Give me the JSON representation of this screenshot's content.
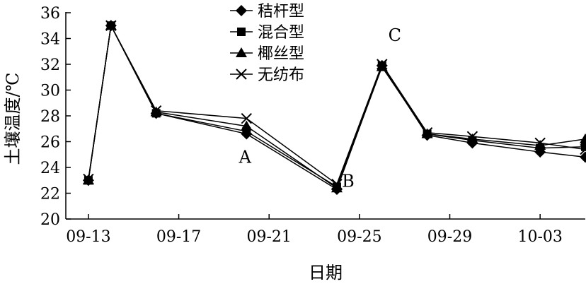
{
  "chart_data": {
    "type": "line",
    "xlabel": "日期",
    "ylabel": "土壤温度/℃",
    "ylim": [
      20,
      36
    ],
    "y_ticks": [
      20,
      22,
      24,
      26,
      28,
      30,
      32,
      34,
      36
    ],
    "x_range": [
      "2023-09-12",
      "2023-10-05"
    ],
    "x_ticks": [
      {
        "date": "2023-09-13",
        "label": "09-13"
      },
      {
        "date": "2023-09-17",
        "label": "09-17"
      },
      {
        "date": "2023-09-21",
        "label": "09-21"
      },
      {
        "date": "2023-09-25",
        "label": "09-25"
      },
      {
        "date": "2023-09-29",
        "label": "09-29"
      },
      {
        "date": "2023-10-03",
        "label": "10-03"
      }
    ],
    "x": [
      "2023-09-13",
      "2023-09-14",
      "2023-09-16",
      "2023-09-20",
      "2023-09-24",
      "2023-09-26",
      "2023-09-28",
      "2023-09-30",
      "2023-10-03",
      "2023-10-05"
    ],
    "grid": false,
    "legend_position": "top-center",
    "series": [
      {
        "name": "秸杆型",
        "marker": "diamond",
        "values": [
          23.0,
          35.0,
          28.2,
          26.6,
          22.3,
          31.9,
          26.5,
          25.9,
          25.2,
          24.8
        ]
      },
      {
        "name": "混合型",
        "marker": "square",
        "values": [
          23.0,
          35.0,
          28.2,
          26.8,
          22.5,
          31.9,
          26.6,
          26.1,
          25.5,
          25.6
        ]
      },
      {
        "name": "椰丝型",
        "marker": "triangle",
        "values": [
          23.0,
          35.0,
          28.3,
          27.2,
          22.4,
          31.8,
          26.6,
          26.2,
          25.7,
          26.2
        ]
      },
      {
        "name": "无纺布",
        "marker": "cross",
        "values": [
          23.1,
          35.0,
          28.4,
          27.8,
          22.7,
          32.0,
          26.7,
          26.4,
          25.9,
          25.4
        ]
      }
    ],
    "annotations": [
      {
        "text": "A",
        "date": "2023-09-20",
        "value": 24.9
      },
      {
        "text": "B",
        "date": "2023-09-24",
        "value": 22.7
      },
      {
        "text": "C",
        "date": "2023-09-26",
        "value": 33.7
      }
    ]
  }
}
